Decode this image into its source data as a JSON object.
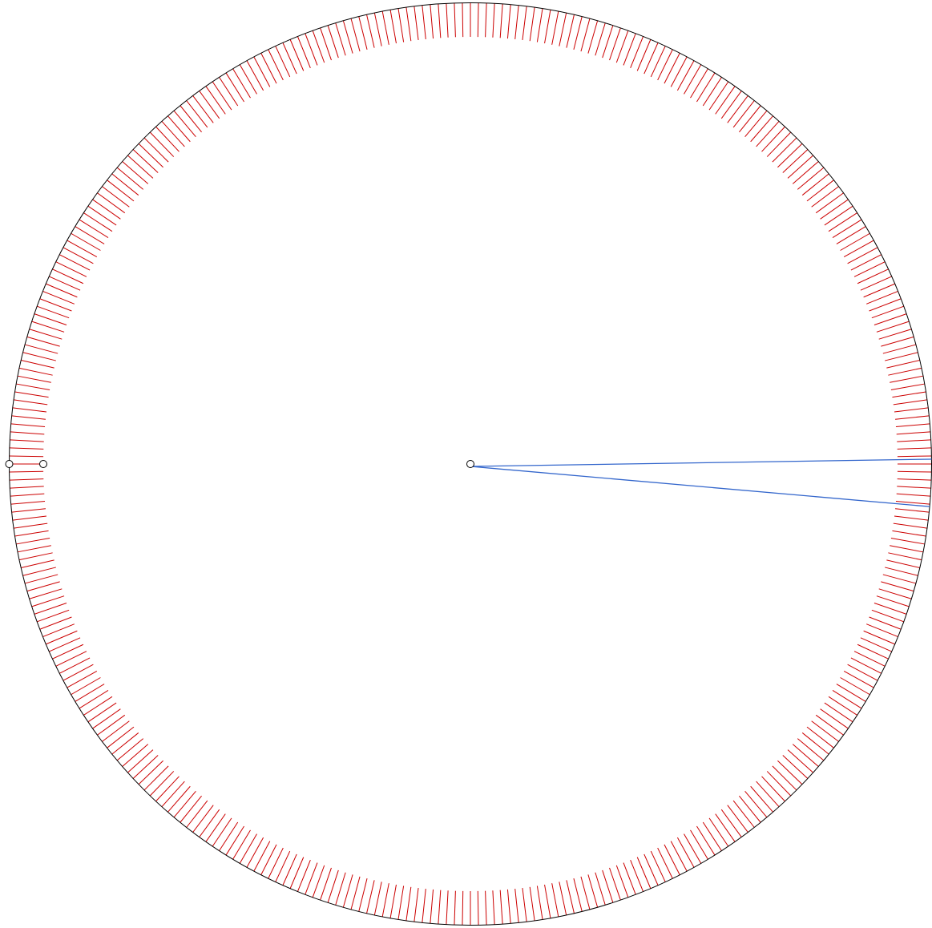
{
  "diagram": {
    "tick_count": 360,
    "colors": {
      "background": "#ffffff",
      "circle": "#000000",
      "ticks": "#cc0000",
      "rays": "#3366cc",
      "points_stroke": "#000000",
      "points_fill": "#ffffff"
    },
    "rays_angles_deg": [
      0.6,
      -5.3
    ]
  }
}
